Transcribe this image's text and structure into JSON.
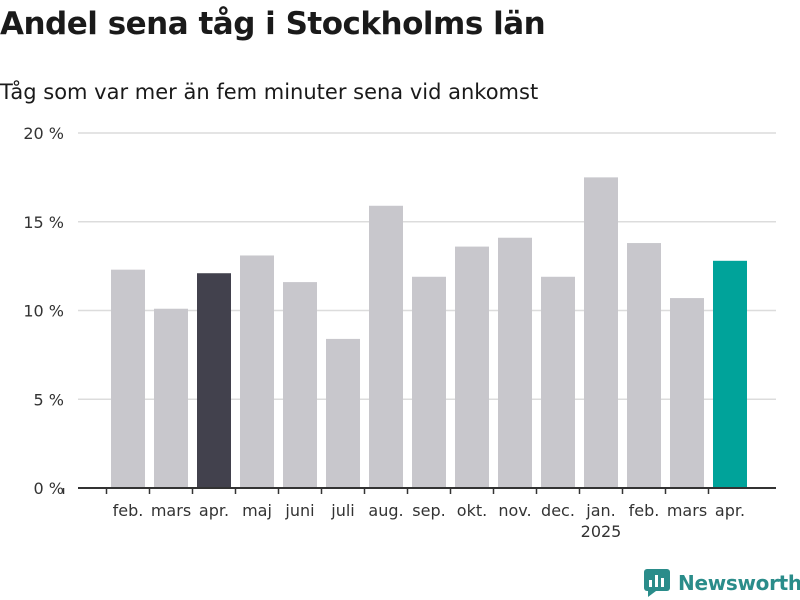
{
  "title": "Andel sena tåg i Stockholms län",
  "subtitle": "Tåg som var mer än fem minuter sena vid ankomst",
  "brand": "Newsworthy",
  "colors": {
    "bar_default": "#c8c7cc",
    "bar_highlight_previous": "#42414d",
    "bar_highlight_current": "#00a39a",
    "grid": "#dcdcdc",
    "axis": "#333333",
    "brand": "#2a8c8a"
  },
  "chart_data": {
    "type": "bar",
    "title": "Andel sena tåg i Stockholms län",
    "subtitle": "Tåg som var mer än fem minuter sena vid ankomst",
    "categories": [
      "feb.",
      "mars",
      "apr.",
      "maj",
      "juni",
      "juli",
      "aug.",
      "sep.",
      "okt.",
      "nov.",
      "dec.",
      "jan.",
      "feb.",
      "mars",
      "apr."
    ],
    "year_labels": [
      {
        "index": 11,
        "label": "2025"
      }
    ],
    "values": [
      12.3,
      10.1,
      12.1,
      13.1,
      11.6,
      8.4,
      15.9,
      11.9,
      13.6,
      14.1,
      11.9,
      17.5,
      13.8,
      10.7,
      12.8
    ],
    "highlight": {
      "2": "previous",
      "14": "current"
    },
    "ylim": [
      0,
      20
    ],
    "yticks": [
      0,
      5,
      10,
      15,
      20
    ],
    "ytick_labels": [
      "0 %",
      "5 %",
      "10 %",
      "15 %",
      "20 %"
    ],
    "xlabel": "",
    "ylabel": "",
    "grid": true
  }
}
